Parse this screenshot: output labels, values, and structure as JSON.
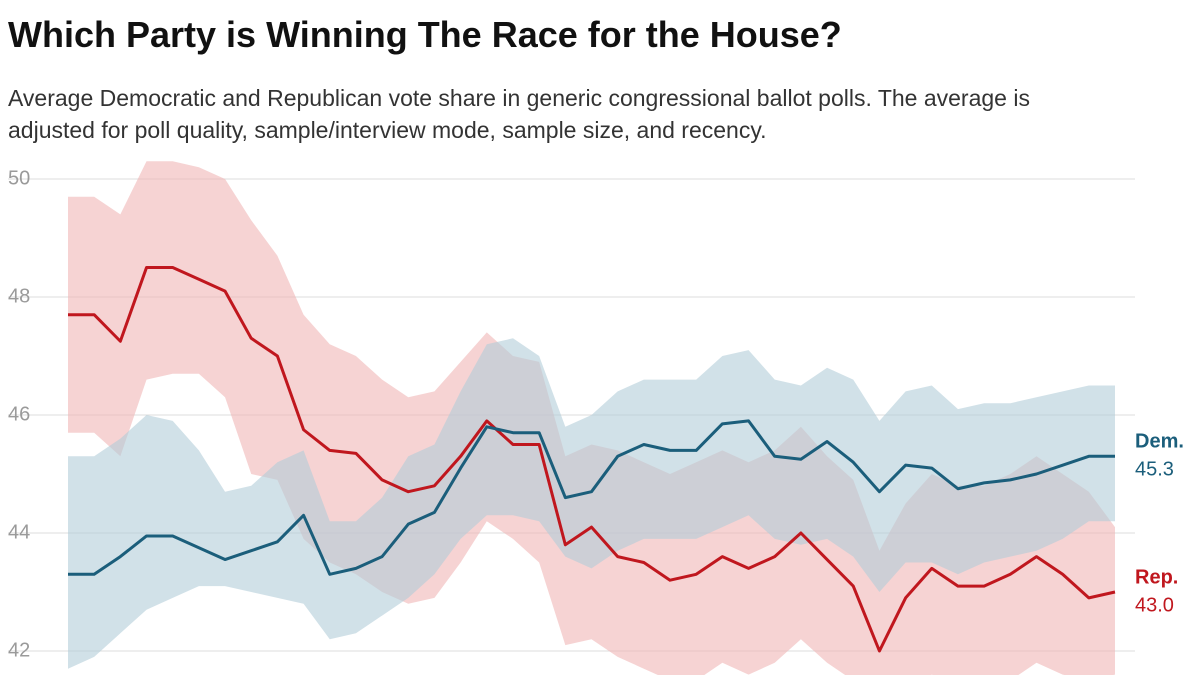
{
  "chart_data": {
    "type": "line",
    "title": "Which Party is Winning The Race for the House?",
    "subtitle": "Average Democratic and Republican vote share in generic congressional ballot polls. The average is adjusted for poll quality, sample/interview mode, sample size, and recency.",
    "ylim": [
      41.6,
      50.3
    ],
    "yticks": [
      42,
      44,
      46,
      48,
      50
    ],
    "grid": true,
    "series": [
      {
        "name": "Rep.",
        "color": "#c0171e",
        "band_color": "#f0b6b6",
        "end_label": "43.0",
        "values": [
          47.7,
          47.7,
          47.25,
          48.5,
          48.5,
          48.3,
          48.1,
          47.3,
          47.0,
          45.75,
          45.4,
          45.35,
          44.9,
          44.7,
          44.8,
          45.3,
          45.9,
          45.5,
          45.5,
          43.8,
          44.1,
          43.6,
          43.5,
          43.2,
          43.3,
          43.6,
          43.4,
          43.6,
          44.0,
          43.55,
          43.1,
          42.0,
          42.9,
          43.4,
          43.1,
          43.1,
          43.3,
          43.6,
          43.3,
          42.9,
          43.0
        ],
        "lower": [
          45.7,
          45.7,
          45.3,
          46.6,
          46.7,
          46.7,
          46.3,
          45.0,
          44.9,
          43.9,
          43.5,
          43.3,
          43.0,
          42.8,
          42.9,
          43.5,
          44.2,
          43.9,
          43.5,
          42.1,
          42.2,
          41.9,
          41.7,
          41.5,
          41.5,
          41.8,
          41.6,
          41.8,
          42.2,
          41.8,
          41.5,
          41.1,
          41.2,
          41.6,
          41.4,
          41.4,
          41.5,
          41.8,
          41.6,
          41.5,
          41.6
        ],
        "upper": [
          49.7,
          49.7,
          49.4,
          50.3,
          50.3,
          50.2,
          50.0,
          49.3,
          48.7,
          47.7,
          47.2,
          47.0,
          46.6,
          46.3,
          46.4,
          46.9,
          47.4,
          47.0,
          46.9,
          45.3,
          45.5,
          45.4,
          45.2,
          45.0,
          45.2,
          45.4,
          45.2,
          45.4,
          45.8,
          45.3,
          44.9,
          43.7,
          44.5,
          45.0,
          44.8,
          44.8,
          45.0,
          45.3,
          45.0,
          44.7,
          44.1
        ]
      },
      {
        "name": "Dem.",
        "color": "#1b5e7b",
        "band_color": "#b3cdd8",
        "end_label": "45.3",
        "values": [
          43.3,
          43.3,
          43.6,
          43.95,
          43.95,
          43.75,
          43.55,
          43.7,
          43.85,
          44.3,
          43.3,
          43.4,
          43.6,
          44.15,
          44.35,
          45.1,
          45.8,
          45.7,
          45.7,
          44.6,
          44.7,
          45.3,
          45.5,
          45.4,
          45.4,
          45.85,
          45.9,
          45.3,
          45.25,
          45.55,
          45.2,
          44.7,
          45.15,
          45.1,
          44.75,
          44.85,
          44.9,
          45.0,
          45.15,
          45.3,
          45.3
        ],
        "lower": [
          41.7,
          41.9,
          42.3,
          42.7,
          42.9,
          43.1,
          43.1,
          43.0,
          42.9,
          42.8,
          42.2,
          42.3,
          42.6,
          42.9,
          43.3,
          43.9,
          44.3,
          44.3,
          44.2,
          43.6,
          43.4,
          43.7,
          43.9,
          43.9,
          43.9,
          44.1,
          44.3,
          43.9,
          43.8,
          43.9,
          43.6,
          43.0,
          43.5,
          43.5,
          43.3,
          43.5,
          43.6,
          43.7,
          43.9,
          44.2,
          44.2
        ],
        "upper": [
          45.3,
          45.3,
          45.6,
          46.0,
          45.9,
          45.4,
          44.7,
          44.8,
          45.2,
          45.4,
          44.2,
          44.2,
          44.6,
          45.3,
          45.5,
          46.4,
          47.2,
          47.3,
          47.0,
          45.8,
          46.0,
          46.4,
          46.6,
          46.6,
          46.6,
          47.0,
          47.1,
          46.6,
          46.5,
          46.8,
          46.6,
          45.9,
          46.4,
          46.5,
          46.1,
          46.2,
          46.2,
          46.3,
          46.4,
          46.5,
          46.5
        ]
      }
    ]
  }
}
